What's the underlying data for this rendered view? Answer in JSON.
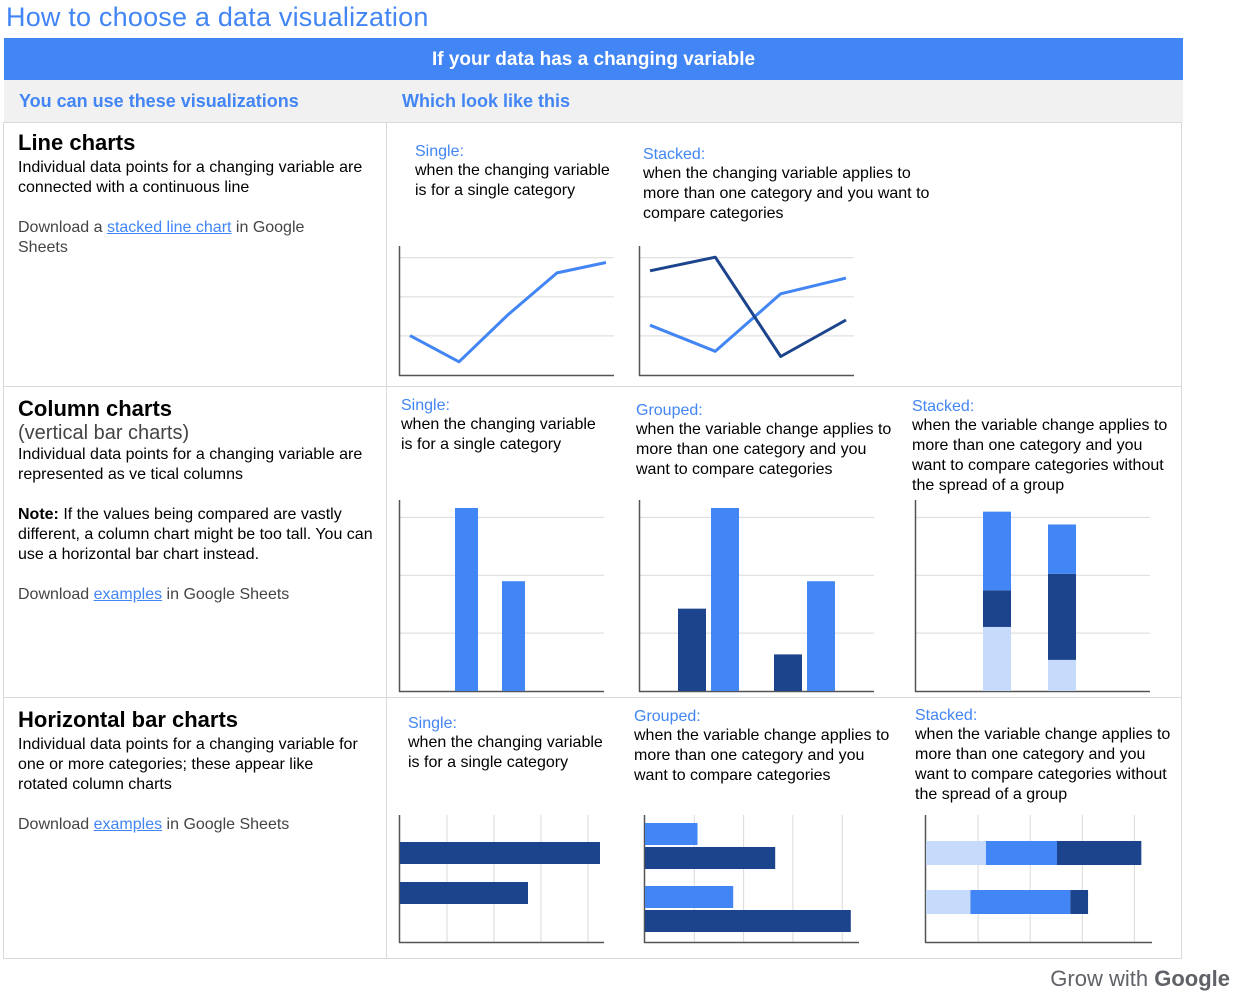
{
  "page_title": "How to choose a data visualization",
  "banner": "If your data has a changing variable",
  "subheader": {
    "left": "You can use these visualizations",
    "right": "Which look like this"
  },
  "rows": {
    "line": {
      "title": "Line charts",
      "desc": "Individual data points for a changing variable are connected with a continuous line",
      "download_pre": "Download a ",
      "download_link": "stacked line chart",
      "download_post": " in Google Sheets",
      "single_label": "Single:",
      "single_desc": "when the changing variable is for a single category",
      "stacked_label": "Stacked:",
      "stacked_desc": "when the changing variable applies to more than one category and you want to compare categories"
    },
    "column": {
      "title": "Column charts",
      "subtitle": "(vertical bar charts)",
      "desc": "Individual data points for a changing variable are represented as ve  tical columns",
      "note_label": "Note:",
      "note_text": " If the values being compared are vastly different, a column chart might be too tall. You can use a horizontal bar chart instead.",
      "download_pre": "Download ",
      "download_link": "examples",
      "download_post": " in Google Sheets",
      "single_label": "Single:",
      "single_desc": "when the changing variable is for a single category",
      "grouped_label": "Grouped:",
      "grouped_desc": "when the variable change applies to more than one category and you want to compare categories",
      "stacked_label": "Stacked:",
      "stacked_desc": "when the variable change applies to more than one category and you want to compare categories without the spread of a group"
    },
    "hbar": {
      "title": "Horizontal bar charts",
      "desc": "Individual data points for a changing variable for one or more categories; these appear like rotated column charts",
      "download_pre": "Download ",
      "download_link": "examples",
      "download_post": " in Google Sheets",
      "single_label": "Single:",
      "single_desc": "when the changing variable is for a single category",
      "grouped_label": "Grouped:",
      "grouped_desc": "when the variable change applies to more than one category and you want to compare categories",
      "stacked_label": "Stacked:",
      "stacked_desc": "when the variable change applies to more than one category and you want to compare categories without the spread of a group"
    }
  },
  "footer": {
    "prefix": "Grow with ",
    "brand": "Google"
  },
  "colors": {
    "accent": "#4285f4",
    "dark_blue": "#1c448c",
    "light_blue": "#c6dafc",
    "grid": "#d9d9d9"
  },
  "chart_data": [
    {
      "type": "line",
      "series": [
        {
          "values": [
            30,
            5,
            50,
            90,
            100
          ]
        }
      ],
      "ylim": [
        0,
        110
      ]
    },
    {
      "type": "line",
      "series": [
        {
          "values": [
            40,
            15,
            70,
            85
          ]
        },
        {
          "values": [
            92,
            105,
            10,
            45
          ]
        }
      ],
      "ylim": [
        0,
        110
      ]
    },
    {
      "type": "bar",
      "values": [
        100,
        60
      ],
      "ylim": [
        0,
        100
      ]
    },
    {
      "type": "bar",
      "series": [
        {
          "values": [
            45,
            20
          ]
        },
        {
          "values": [
            100,
            60
          ]
        }
      ],
      "ylim": [
        0,
        100
      ]
    },
    {
      "type": "bar",
      "stacked": true,
      "series": [
        {
          "values": [
            43,
            27
          ]
        },
        {
          "values": [
            20,
            47
          ]
        },
        {
          "values": [
            35,
            17
          ]
        }
      ],
      "ylim": [
        0,
        100
      ]
    },
    {
      "type": "bar",
      "orientation": "horizontal",
      "values": [
        100,
        64
      ],
      "xlim": [
        0,
        100
      ]
    },
    {
      "type": "bar",
      "orientation": "horizontal",
      "series": [
        {
          "values": [
            25,
            42
          ]
        },
        {
          "values": [
            62,
            98
          ]
        }
      ],
      "xlim": [
        0,
        100
      ]
    },
    {
      "type": "bar",
      "orientation": "horizontal",
      "stacked": true,
      "series": [
        {
          "values": [
            27,
            20
          ]
        },
        {
          "values": [
            32,
            45
          ]
        },
        {
          "values": [
            38,
            8
          ]
        }
      ],
      "xlim": [
        0,
        100
      ]
    }
  ]
}
